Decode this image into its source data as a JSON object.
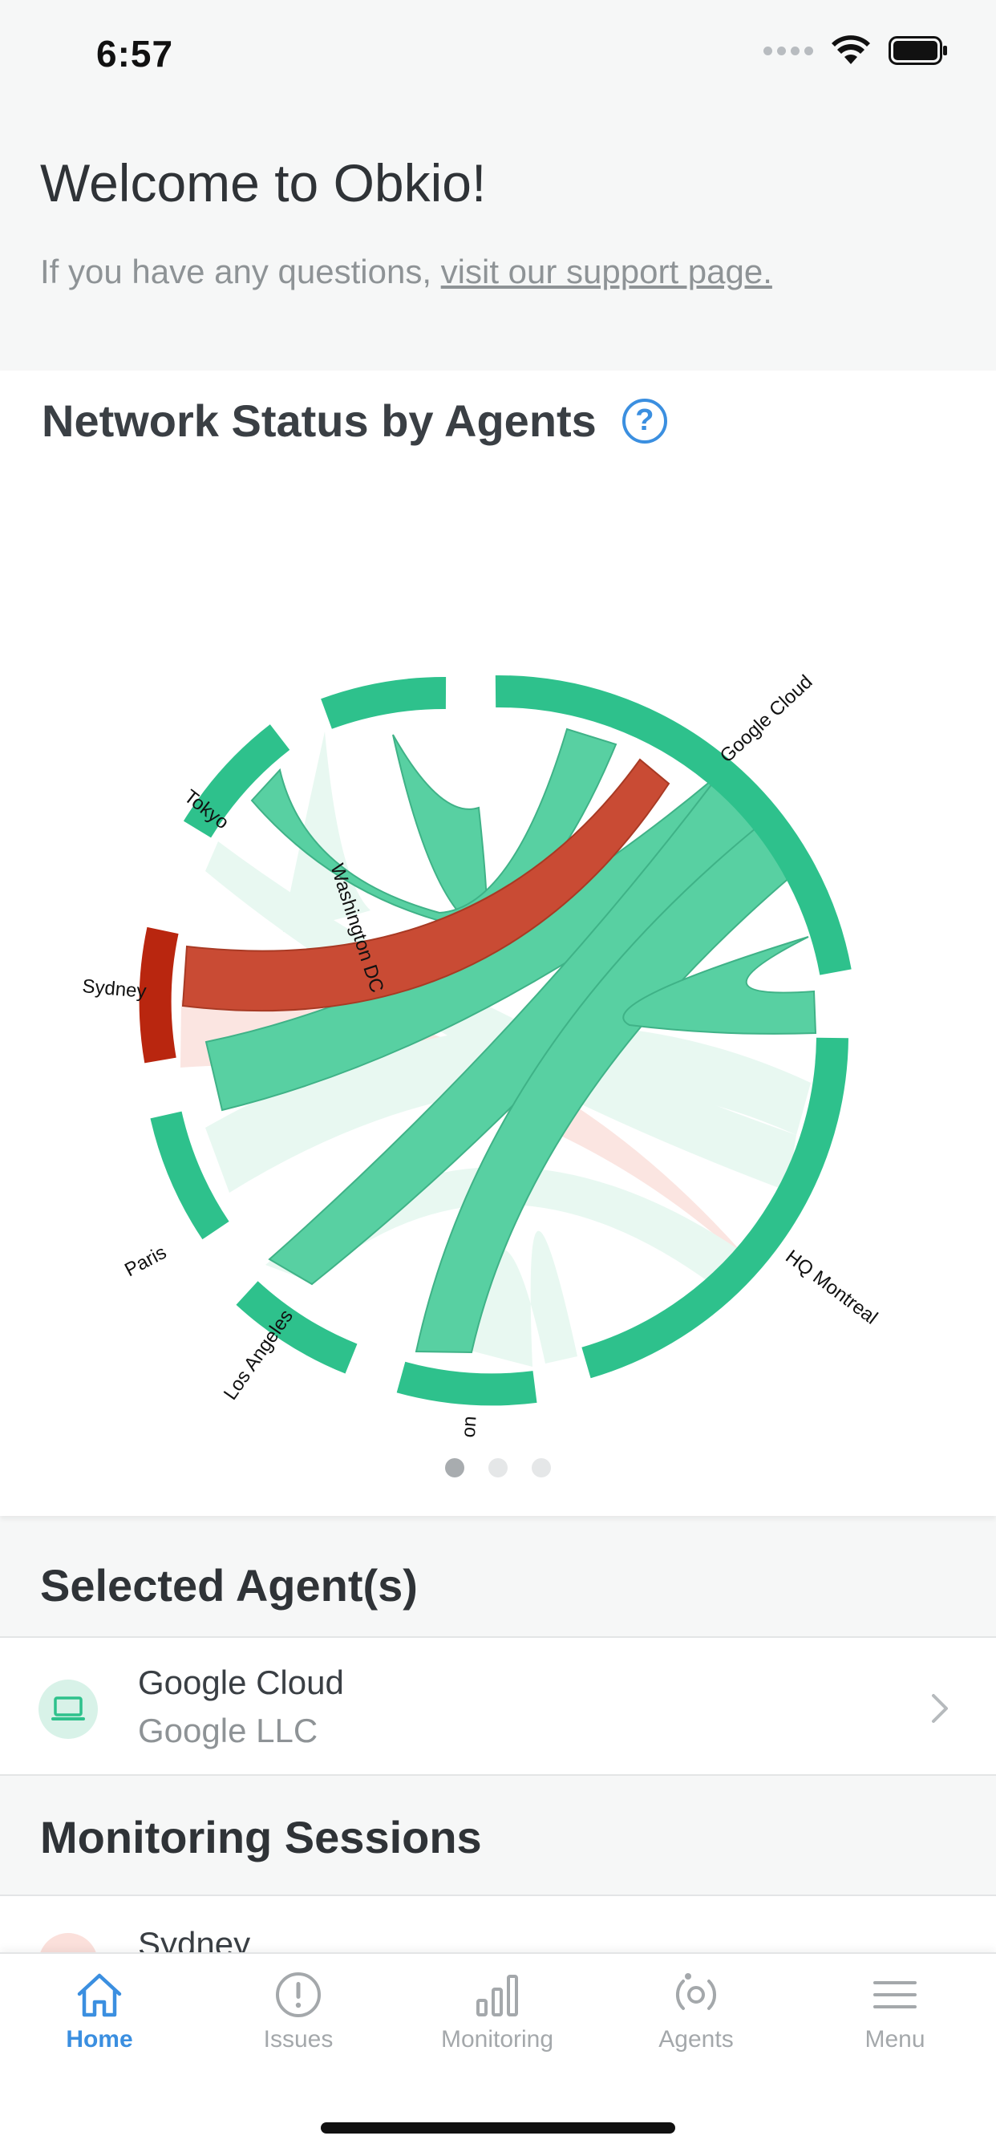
{
  "status": {
    "time": "6:57"
  },
  "welcome": {
    "title": "Welcome to Obkio!",
    "subtitle_prefix": "If you have any questions, ",
    "subtitle_link": "visit our support page."
  },
  "network_status": {
    "title": "Network Status by Agents",
    "help_icon": "question-circle-icon"
  },
  "chart_data": {
    "type": "chord",
    "nodes": [
      "Google Cloud",
      "HQ Montreal",
      "London",
      "Los Angeles",
      "Paris",
      "Sydney",
      "Tokyo",
      "Washington DC"
    ],
    "status_colors": {
      "ok": "#2ec18c",
      "ok_link": "#58d0a2",
      "ok_faded": "#e8f8f1",
      "error": "#b9260f",
      "error_link": "#c94b34",
      "error_faded": "#fbe5e1"
    }
  },
  "pager": {
    "count": 3,
    "active": 0
  },
  "selected_agents": {
    "title": "Selected Agent(s)",
    "items": [
      {
        "name": "Google Cloud",
        "provider": "Google LLC",
        "icon": "laptop-icon"
      }
    ]
  },
  "monitoring_sessions": {
    "title": "Monitoring Sessions",
    "items": [
      {
        "name": "Sydney"
      }
    ]
  },
  "tabs": [
    {
      "label": "Home",
      "icon": "home-icon",
      "active": true
    },
    {
      "label": "Issues",
      "icon": "alert-circle-icon",
      "active": false
    },
    {
      "label": "Monitoring",
      "icon": "bar-chart-icon",
      "active": false
    },
    {
      "label": "Agents",
      "icon": "agents-icon",
      "active": false
    },
    {
      "label": "Menu",
      "icon": "menu-icon",
      "active": false
    }
  ]
}
